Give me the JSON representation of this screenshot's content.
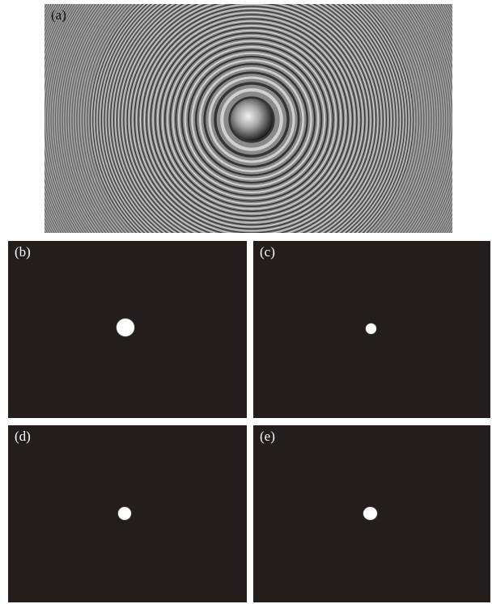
{
  "figure": {
    "panels": [
      {
        "id": "a",
        "label": "(a)",
        "content": "ring-pattern"
      },
      {
        "id": "b",
        "label": "(b)",
        "content": "spot"
      },
      {
        "id": "c",
        "label": "(c)",
        "content": "spot"
      },
      {
        "id": "d",
        "label": "(d)",
        "content": "spot"
      },
      {
        "id": "e",
        "label": "(e)",
        "content": "spot"
      }
    ],
    "colors": {
      "ring_background": "#8a8a8a",
      "ring_light": "#d8d8d8",
      "ring_dark": "#2a2a2a",
      "dark_background": "#231d1b",
      "spot": "#ffffff"
    }
  }
}
